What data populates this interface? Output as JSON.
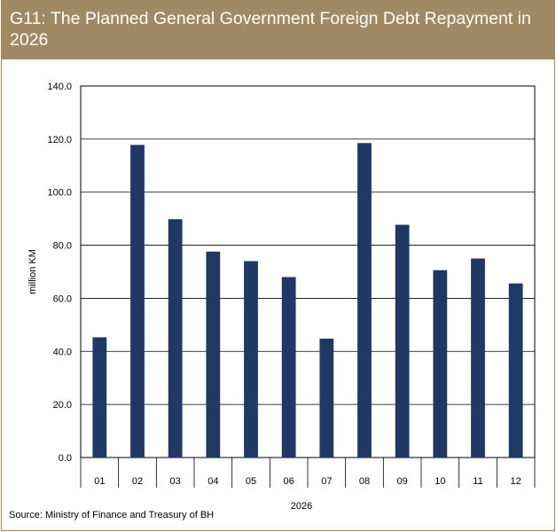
{
  "header": {
    "title": "G11: The Planned General Government Foreign Debt Repayment in 2026"
  },
  "source": "Source: Ministry of Finance and Treasury of BH",
  "colors": {
    "header_bg": "#a08a66",
    "bar": "#1f3864",
    "grid": "#000000"
  },
  "chart_data": {
    "type": "bar",
    "categories": [
      "01",
      "02",
      "03",
      "04",
      "05",
      "06",
      "07",
      "08",
      "09",
      "10",
      "11",
      "12"
    ],
    "values": [
      45.3,
      117.8,
      89.8,
      77.6,
      74.0,
      68.0,
      44.8,
      118.5,
      87.7,
      70.6,
      75.0,
      65.6
    ],
    "xlabel": "2026",
    "ylabel": "million KM",
    "ylim": [
      0,
      140
    ],
    "yticks": [
      "0.0",
      "20.0",
      "40.0",
      "60.0",
      "80.0",
      "100.0",
      "120.0",
      "140.0"
    ],
    "grid": true
  }
}
